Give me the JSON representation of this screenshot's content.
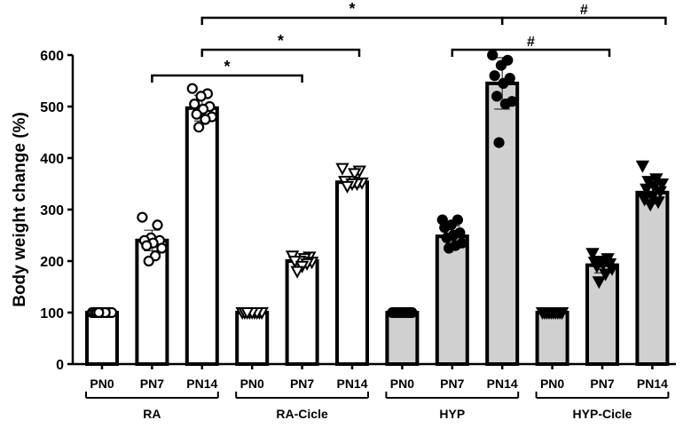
{
  "chart_data": {
    "type": "bar",
    "title": "",
    "xlabel": "",
    "ylabel": "Body weight change (%)",
    "ylim": [
      0,
      600
    ],
    "yticks": [
      0,
      100,
      200,
      300,
      400,
      500,
      600
    ],
    "grid": false,
    "groups": [
      {
        "name": "RA",
        "fill": "#ffffff",
        "marker": "circle-open",
        "bars": [
          {
            "label": "PN0",
            "value": 100,
            "sd": 0,
            "points": [
              100,
              100,
              100,
              100,
              100,
              100,
              100,
              100,
              100,
              100
            ]
          },
          {
            "label": "PN7",
            "value": 240,
            "sd": 20,
            "points": [
              285,
              270,
              245,
              240,
              240,
              235,
              230,
              225,
              210,
              200
            ]
          },
          {
            "label": "PN14",
            "value": 497,
            "sd": 25,
            "points": [
              535,
              525,
              520,
              505,
              500,
              495,
              485,
              480,
              475,
              460
            ]
          }
        ]
      },
      {
        "name": "RA-Cicle",
        "fill": "#ffffff",
        "marker": "triangle-open",
        "bars": [
          {
            "label": "PN0",
            "value": 100,
            "sd": 0,
            "points": [
              100,
              100,
              100,
              100,
              100,
              100,
              100,
              100,
              100
            ]
          },
          {
            "label": "PN7",
            "value": 200,
            "sd": 8,
            "points": [
              210,
              208,
              205,
              200,
              200,
              198,
              195,
              190,
              180
            ]
          },
          {
            "label": "PN14",
            "value": 353,
            "sd": 10,
            "points": [
              380,
              375,
              370,
              355,
              355,
              352,
              350,
              350,
              345
            ]
          }
        ]
      },
      {
        "name": "HYP",
        "fill": "#d0d0d0",
        "marker": "circle-filled",
        "bars": [
          {
            "label": "PN0",
            "value": 100,
            "sd": 0,
            "points": [
              100,
              100,
              100,
              100,
              100,
              100,
              100,
              100,
              100,
              100
            ]
          },
          {
            "label": "PN7",
            "value": 248,
            "sd": 20,
            "points": [
              280,
              280,
              270,
              265,
              255,
              250,
              245,
              235,
              230,
              225
            ]
          },
          {
            "label": "PN14",
            "value": 545,
            "sd": 50,
            "points": [
              600,
              590,
              580,
              560,
              555,
              545,
              520,
              510,
              505,
              430
            ]
          }
        ]
      },
      {
        "name": "HYP-Cicle",
        "fill": "#d0d0d0",
        "marker": "triangle-filled",
        "bars": [
          {
            "label": "PN0",
            "value": 100,
            "sd": 0,
            "points": [
              100,
              100,
              100,
              100,
              100,
              100,
              100,
              100,
              100,
              100
            ]
          },
          {
            "label": "PN7",
            "value": 192,
            "sd": 15,
            "points": [
              215,
              205,
              200,
              198,
              195,
              195,
              190,
              185,
              175,
              160
            ]
          },
          {
            "label": "PN14",
            "value": 333,
            "sd": 22,
            "points": [
              385,
              360,
              355,
              350,
              345,
              340,
              335,
              325,
              320,
              315,
              310
            ]
          }
        ]
      }
    ],
    "annotations": [
      {
        "from": "RA PN14",
        "to": "HYP PN14",
        "label": "*",
        "level": 1
      },
      {
        "from": "HYP PN14",
        "to": "HYP-Cicle PN14",
        "label": "#",
        "level": 1
      },
      {
        "from": "RA PN14",
        "to": "RA-Cicle PN14",
        "label": "*",
        "level": 2
      },
      {
        "from": "HYP PN7",
        "to": "HYP-Cicle PN7",
        "label": "#",
        "level": 2
      },
      {
        "from": "RA PN7",
        "to": "RA-Cicle PN7",
        "label": "*",
        "level": 3
      }
    ]
  }
}
